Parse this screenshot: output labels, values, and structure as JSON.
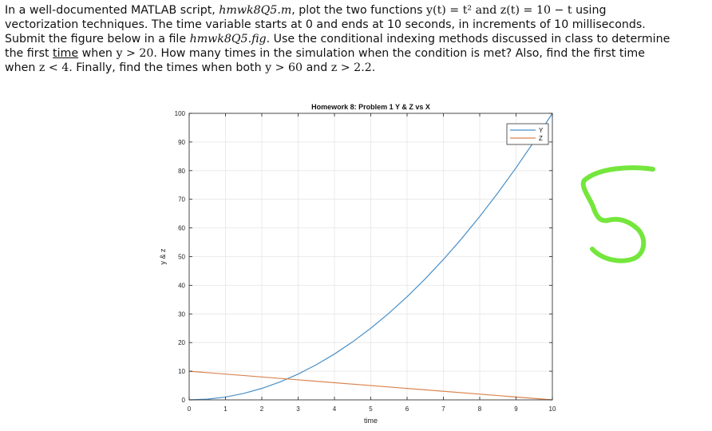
{
  "problem": {
    "line1": [
      "In a well-documented MATLAB script, ",
      "hmwk8Q5.m",
      ", plot the two functions ",
      "y(t) = t² and z(t) = 10 − t",
      " using"
    ],
    "line2": "vectorization techniques. The time variable starts at 0 and ends at 10 seconds, in increments of 10 milliseconds.",
    "line3": [
      "Submit the figure below in a file ",
      "hmwk8Q5.fig",
      ". Use the conditional indexing methods discussed in class to determine"
    ],
    "line4": [
      "the first ",
      "time",
      " when ",
      "y > 20",
      ". How many times in the simulation when the condition is met? Also, find the first time"
    ],
    "line5": [
      "when ",
      "z < 4",
      ". Finally, find the times when both ",
      "y > 60",
      " and ",
      "z > 2.2",
      "."
    ]
  },
  "handwritten_answer": "5",
  "chart_data": {
    "type": "line",
    "title": "Homework 8: Problem 1 Y & Z vs X",
    "xlabel": "time",
    "ylabel": "y & z",
    "xlim": [
      0,
      10
    ],
    "ylim": [
      0,
      100
    ],
    "xticks": [
      0,
      1,
      2,
      3,
      4,
      5,
      6,
      7,
      8,
      9,
      10
    ],
    "yticks": [
      0,
      10,
      20,
      30,
      40,
      50,
      60,
      70,
      80,
      90,
      100
    ],
    "grid": true,
    "legend_position": "top-right",
    "series": [
      {
        "name": "Y",
        "color": "#4a90c8",
        "x": [
          0,
          0.5,
          1,
          1.5,
          2,
          2.5,
          3,
          3.5,
          4,
          4.5,
          5,
          5.5,
          6,
          6.5,
          7,
          7.5,
          8,
          8.5,
          9,
          9.5,
          10
        ],
        "values": [
          0,
          0.25,
          1,
          2.25,
          4,
          6.25,
          9,
          12.25,
          16,
          20.25,
          25,
          30.25,
          36,
          42.25,
          49,
          56.25,
          64,
          72.25,
          81,
          90.25,
          100
        ]
      },
      {
        "name": "Z",
        "color": "#d9844f",
        "x": [
          0,
          10
        ],
        "values": [
          10,
          0
        ]
      }
    ]
  }
}
